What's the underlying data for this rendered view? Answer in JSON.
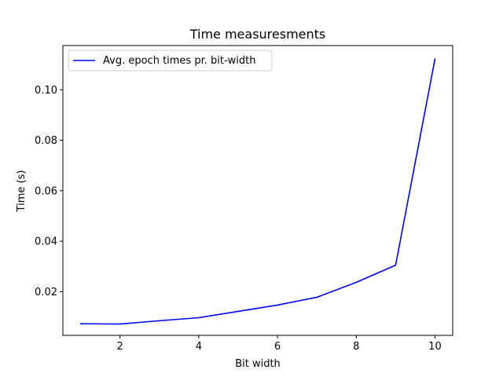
{
  "chart_data": {
    "type": "line",
    "title": "Time measuresments",
    "xlabel": "Bit width",
    "ylabel": "Time (s)",
    "xlim": [
      0.55,
      10.45
    ],
    "ylim": [
      0.0027,
      0.1175
    ],
    "x_ticks": [
      2,
      4,
      6,
      8,
      10
    ],
    "x_tick_labels": [
      "2",
      "4",
      "6",
      "8",
      "10"
    ],
    "y_ticks": [
      0.02,
      0.04,
      0.06,
      0.08,
      0.1
    ],
    "y_tick_labels": [
      "0.02",
      "0.04",
      "0.06",
      "0.08",
      "0.10"
    ],
    "grid": false,
    "legend_position": "top-left",
    "series": [
      {
        "name": "Avg. epoch times pr. bit-width",
        "color": "#0000ff",
        "x": [
          1,
          2,
          3,
          4,
          5,
          6,
          7,
          8,
          9,
          10
        ],
        "y": [
          0.0073,
          0.0072,
          0.0085,
          0.0097,
          0.0122,
          0.0147,
          0.0178,
          0.0237,
          0.0305,
          0.1122
        ]
      }
    ]
  }
}
